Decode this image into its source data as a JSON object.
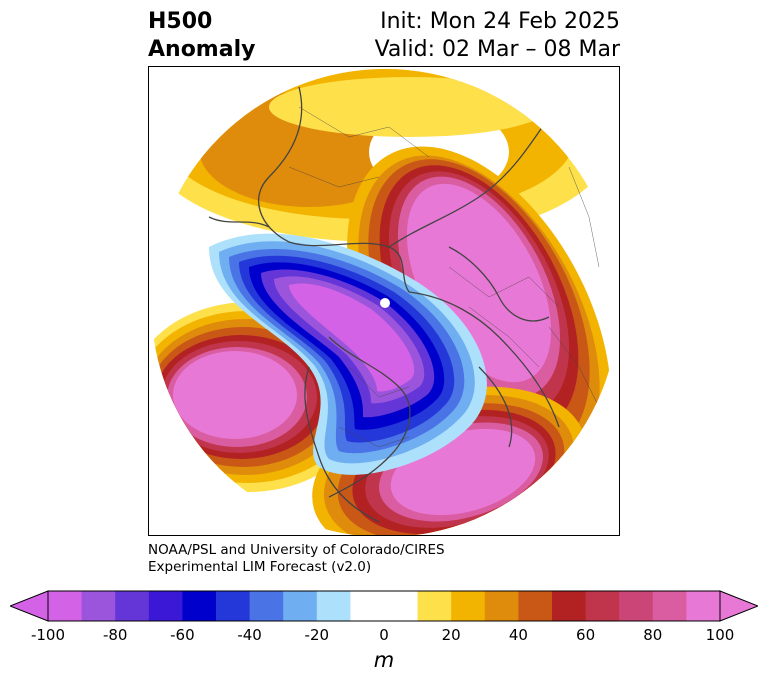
{
  "title": {
    "left_line1": "H500",
    "left_line2": "Anomaly",
    "right_line1": "Init: Mon 24 Feb 2025",
    "right_line2": "Valid: 02 Mar – 08 Mar"
  },
  "credit": {
    "line1": "NOAA/PSL and University of Colorado/CIRES",
    "line2": "Experimental LIM Forecast (v2.0)"
  },
  "colorbar": {
    "unit": "m",
    "ticks": [
      "-100",
      "-80",
      "-60",
      "-40",
      "-20",
      "0",
      "20",
      "40",
      "60",
      "80",
      "100"
    ],
    "bins": [
      {
        "from": -100,
        "to": -90,
        "color": "#d462e6"
      },
      {
        "from": -90,
        "to": -80,
        "color": "#9b55dc"
      },
      {
        "from": -80,
        "to": -70,
        "color": "#6436d8"
      },
      {
        "from": -70,
        "to": -60,
        "color": "#3a18d6"
      },
      {
        "from": -60,
        "to": -50,
        "color": "#0000cc"
      },
      {
        "from": -50,
        "to": -40,
        "color": "#2437d9"
      },
      {
        "from": -40,
        "to": -30,
        "color": "#4a73e6"
      },
      {
        "from": -30,
        "to": -20,
        "color": "#70aef2"
      },
      {
        "from": -20,
        "to": -10,
        "color": "#ade0fb"
      },
      {
        "from": -10,
        "to": 0,
        "color": "#ffffff"
      },
      {
        "from": 0,
        "to": 10,
        "color": "#ffffff"
      },
      {
        "from": 10,
        "to": 20,
        "color": "#fee04a"
      },
      {
        "from": 20,
        "to": 30,
        "color": "#f2b400"
      },
      {
        "from": 30,
        "to": 40,
        "color": "#df8b0c"
      },
      {
        "from": 40,
        "to": 50,
        "color": "#c95716"
      },
      {
        "from": 50,
        "to": 60,
        "color": "#b22222"
      },
      {
        "from": 60,
        "to": 70,
        "color": "#c0354c"
      },
      {
        "from": 70,
        "to": 80,
        "color": "#cc4577"
      },
      {
        "from": 80,
        "to": 90,
        "color": "#d95da0"
      },
      {
        "from": 90,
        "to": 100,
        "color": "#e878d6"
      }
    ],
    "extend_low_color": "#d462e6",
    "extend_high_color": "#e878d6"
  },
  "map_colors": {
    "positive": [
      "#fee04a",
      "#f2b400",
      "#df8b0c",
      "#c95716",
      "#b22222",
      "#c0354c",
      "#cc4577",
      "#d95da0",
      "#e878d6"
    ],
    "negative": [
      "#ade0fb",
      "#70aef2",
      "#4a73e6",
      "#2437d9",
      "#0000cc",
      "#3a18d6",
      "#6436d8",
      "#9b55dc",
      "#d462e6"
    ],
    "coastline": "#444444"
  }
}
